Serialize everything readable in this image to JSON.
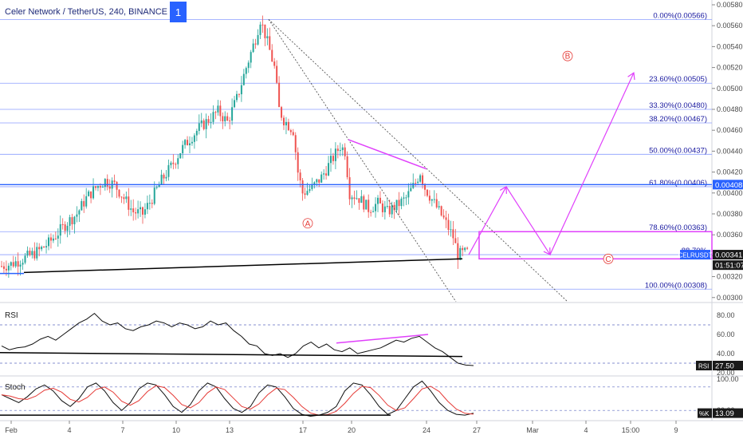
{
  "header": {
    "title": "Celer Network / TetherUS, 240, BINANCE",
    "badge": "1"
  },
  "colors": {
    "up": "#26a69a",
    "down": "#ef5350",
    "fib": "#8c9eff",
    "level_line": "#2962ff",
    "projection": "#e040fb",
    "wave_label": "#e53935",
    "trend": "#000000"
  },
  "chart_data": [
    {
      "type": "candlestick",
      "title": "Celer Network / TetherUS, 240, BINANCE",
      "ylim": [
        0.00296,
        0.0058
      ],
      "y_ticks": [
        "0.00580",
        "0.00560",
        "0.00540",
        "0.00520",
        "0.00500",
        "0.00480",
        "0.00460",
        "0.00440",
        "0.00420",
        "0.00400",
        "0.00380",
        "0.00360",
        "0.00340",
        "0.00320",
        "0.00300"
      ],
      "x_ticks": [
        "Feb",
        "4",
        "7",
        "10",
        "13",
        "17",
        "20",
        "24",
        "27",
        "Mar",
        "4",
        "15:00",
        "9"
      ],
      "price_path": [
        [
          0,
          0.0033
        ],
        [
          4,
          0.00332
        ],
        [
          8,
          0.00336
        ],
        [
          12,
          0.0034
        ],
        [
          16,
          0.00345
        ],
        [
          20,
          0.00352
        ],
        [
          24,
          0.00362
        ],
        [
          28,
          0.00372
        ],
        [
          32,
          0.0038
        ],
        [
          36,
          0.00395
        ],
        [
          40,
          0.00405
        ],
        [
          44,
          0.00412
        ],
        [
          48,
          0.00408
        ],
        [
          52,
          0.00395
        ],
        [
          56,
          0.00382
        ],
        [
          60,
          0.0038
        ],
        [
          64,
          0.00395
        ],
        [
          68,
          0.00412
        ],
        [
          72,
          0.00425
        ],
        [
          76,
          0.0044
        ],
        [
          80,
          0.00452
        ],
        [
          84,
          0.00462
        ],
        [
          88,
          0.0047
        ],
        [
          92,
          0.00478
        ],
        [
          96,
          0.00468
        ],
        [
          100,
          0.0049
        ],
        [
          104,
          0.0052
        ],
        [
          108,
          0.00548
        ],
        [
          110,
          0.00566
        ],
        [
          112,
          0.00552
        ],
        [
          116,
          0.0052
        ],
        [
          118,
          0.0048
        ],
        [
          120,
          0.0047
        ],
        [
          124,
          0.0046
        ],
        [
          126,
          0.0042
        ],
        [
          128,
          0.004
        ],
        [
          132,
          0.00405
        ],
        [
          136,
          0.00415
        ],
        [
          140,
          0.0043
        ],
        [
          144,
          0.00445
        ],
        [
          146,
          0.0044
        ],
        [
          148,
          0.004
        ],
        [
          152,
          0.00395
        ],
        [
          156,
          0.00385
        ],
        [
          160,
          0.0039
        ],
        [
          164,
          0.00382
        ],
        [
          168,
          0.00388
        ],
        [
          172,
          0.00395
        ],
        [
          176,
          0.0041
        ],
        [
          178,
          0.0042
        ],
        [
          180,
          0.00405
        ],
        [
          184,
          0.0039
        ],
        [
          188,
          0.00375
        ],
        [
          192,
          0.00358
        ],
        [
          194,
          0.00341
        ],
        [
          198,
          0.00343
        ]
      ],
      "fib_levels": [
        {
          "label": "0.00%(0.00566)",
          "value": 0.00566
        },
        {
          "label": "23.60%(0.00505)",
          "value": 0.00505
        },
        {
          "label": "33.30%(0.00480)",
          "value": 0.0048
        },
        {
          "label": "38.20%(0.00467)",
          "value": 0.00467
        },
        {
          "label": "50.00%(0.00437)",
          "value": 0.00437
        },
        {
          "label": "61.80%(0.00406)",
          "value": 0.00406
        },
        {
          "label": "78.60%(0.00363)",
          "value": 0.00363
        },
        {
          "label": "88.70%",
          "value": 0.00341
        },
        {
          "label": "100.00%(0.00308)",
          "value": 0.00308
        }
      ],
      "price_badges": [
        {
          "text": "0.00408",
          "value": 0.00408,
          "color": "#2962ff"
        },
        {
          "text": "0.00341",
          "value": 0.00341,
          "color": "#1a1a1a"
        },
        {
          "text": "01:51:07",
          "value": 0.00331,
          "color": "#1a1a1a"
        },
        {
          "text": "CELRUSDT",
          "value": 0.00341,
          "color": "#2962ff"
        }
      ],
      "wave_labels": [
        "A",
        "B",
        "C"
      ]
    },
    {
      "type": "line",
      "name": "RSI",
      "ylim": [
        20,
        90
      ],
      "y_ticks": [
        "80.00",
        "60.00",
        "40.00",
        "20.00"
      ],
      "values": [
        48,
        44,
        46,
        47,
        50,
        55,
        58,
        54,
        60,
        66,
        72,
        76,
        82,
        74,
        70,
        72,
        66,
        64,
        68,
        70,
        74,
        72,
        68,
        72,
        70,
        66,
        68,
        74,
        70,
        72,
        64,
        58,
        50,
        48,
        40,
        38,
        40,
        36,
        40,
        48,
        52,
        46,
        50,
        44,
        42,
        46,
        40,
        42,
        44,
        46,
        50,
        54,
        52,
        56,
        58,
        52,
        46,
        42,
        36,
        30,
        28,
        27.5
      ],
      "current": "27.50",
      "label": "RSI"
    },
    {
      "type": "line",
      "name": "Stoch",
      "ylim": [
        0,
        100
      ],
      "y_ticks": [
        "100.00",
        "20.00"
      ],
      "k_values": [
        60,
        50,
        40,
        55,
        75,
        85,
        70,
        45,
        30,
        50,
        80,
        90,
        70,
        40,
        20,
        40,
        75,
        90,
        85,
        60,
        30,
        15,
        35,
        70,
        90,
        80,
        50,
        25,
        15,
        30,
        65,
        85,
        80,
        55,
        25,
        10,
        5,
        8,
        15,
        30,
        70,
        90,
        85,
        60,
        30,
        10,
        20,
        50,
        80,
        95,
        70,
        40,
        20,
        10,
        8,
        13
      ],
      "current": "13.09",
      "label": "Stoch",
      "badge": "%K"
    }
  ]
}
